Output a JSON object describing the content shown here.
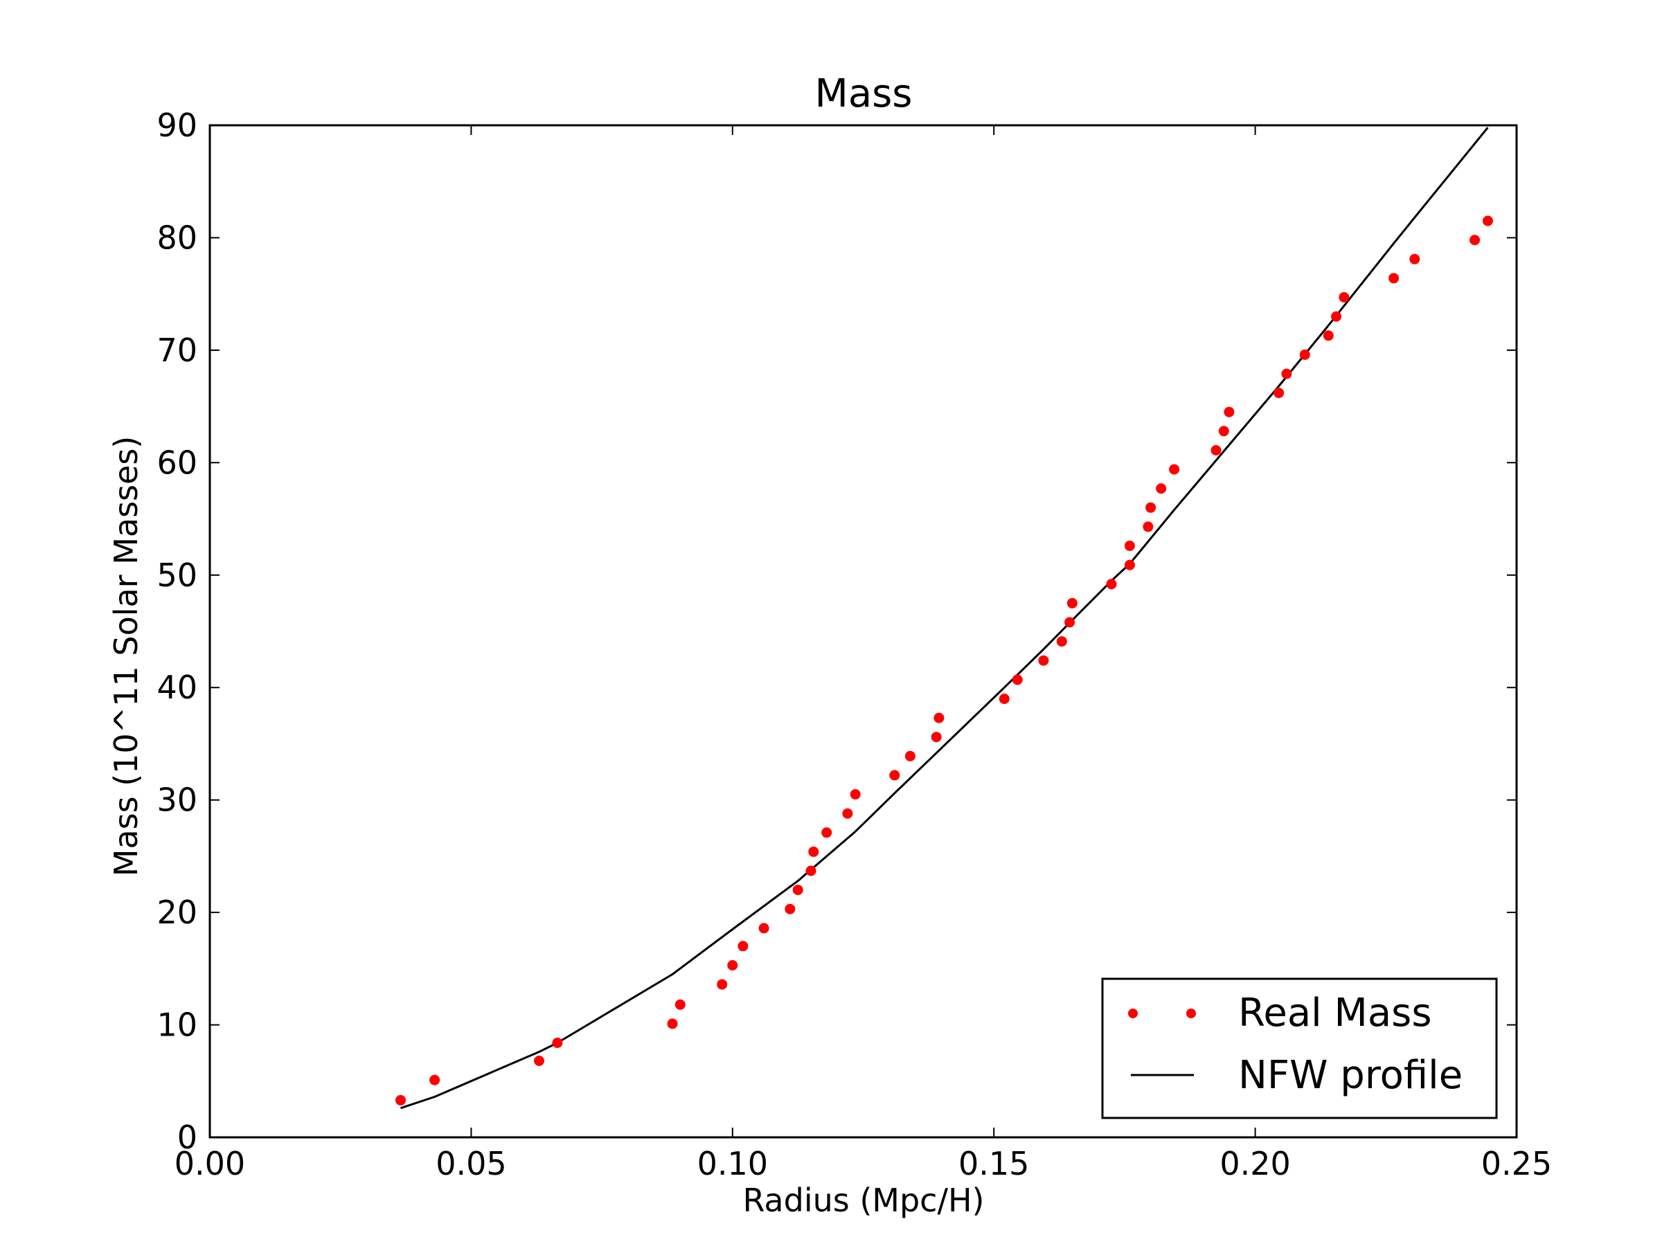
{
  "chart_data": {
    "type": "scatter",
    "title": "Mass",
    "xlabel": "Radius (Mpc/H)",
    "ylabel": "Mass (10^11 Solar Masses)",
    "xlim": [
      0.0,
      0.25
    ],
    "ylim": [
      0,
      90
    ],
    "x_ticks": [
      "0.00",
      "0.05",
      "0.10",
      "0.15",
      "0.20",
      "0.25"
    ],
    "y_ticks": [
      "0",
      "10",
      "20",
      "30",
      "40",
      "50",
      "60",
      "70",
      "80",
      "90"
    ],
    "grid": false,
    "legend_position": "bottom-right",
    "series": [
      {
        "name": "Real Mass",
        "style": "points",
        "color": "#ff0000",
        "points": [
          [
            0.0365,
            3.3
          ],
          [
            0.043,
            5.1
          ],
          [
            0.063,
            6.8
          ],
          [
            0.0665,
            8.4
          ],
          [
            0.0885,
            10.1
          ],
          [
            0.09,
            11.8
          ],
          [
            0.098,
            13.6
          ],
          [
            0.1,
            15.3
          ],
          [
            0.102,
            17.0
          ],
          [
            0.106,
            18.6
          ],
          [
            0.111,
            20.3
          ],
          [
            0.1125,
            22.0
          ],
          [
            0.115,
            23.7
          ],
          [
            0.1155,
            25.4
          ],
          [
            0.118,
            27.1
          ],
          [
            0.122,
            28.8
          ],
          [
            0.1235,
            30.5
          ],
          [
            0.131,
            32.2
          ],
          [
            0.134,
            33.9
          ],
          [
            0.139,
            35.6
          ],
          [
            0.1395,
            37.3
          ],
          [
            0.152,
            39.0
          ],
          [
            0.1545,
            40.7
          ],
          [
            0.1595,
            42.4
          ],
          [
            0.163,
            44.1
          ],
          [
            0.1645,
            45.8
          ],
          [
            0.165,
            47.5
          ],
          [
            0.1725,
            49.2
          ],
          [
            0.176,
            50.9
          ],
          [
            0.176,
            52.6
          ],
          [
            0.1795,
            54.3
          ],
          [
            0.18,
            56.0
          ],
          [
            0.182,
            57.7
          ],
          [
            0.1845,
            59.4
          ],
          [
            0.1925,
            61.1
          ],
          [
            0.194,
            62.8
          ],
          [
            0.195,
            64.5
          ],
          [
            0.2045,
            66.2
          ],
          [
            0.206,
            67.9
          ],
          [
            0.2095,
            69.6
          ],
          [
            0.214,
            71.3
          ],
          [
            0.2155,
            73.0
          ],
          [
            0.217,
            74.7
          ],
          [
            0.2265,
            76.4
          ],
          [
            0.2305,
            78.1
          ],
          [
            0.242,
            79.8
          ],
          [
            0.2445,
            81.5
          ]
        ]
      },
      {
        "name": "NFW profile",
        "style": "line",
        "color": "#000000",
        "points": [
          [
            0.0365,
            2.6
          ],
          [
            0.043,
            3.6
          ],
          [
            0.063,
            7.6
          ],
          [
            0.0665,
            8.4
          ],
          [
            0.0885,
            14.5
          ],
          [
            0.1,
            18.5
          ],
          [
            0.1125,
            22.8
          ],
          [
            0.1235,
            27.2
          ],
          [
            0.131,
            30.6
          ],
          [
            0.1395,
            34.4
          ],
          [
            0.152,
            40.0
          ],
          [
            0.1595,
            43.4
          ],
          [
            0.165,
            46.0
          ],
          [
            0.1725,
            49.5
          ],
          [
            0.176,
            51.0
          ],
          [
            0.1845,
            55.8
          ],
          [
            0.1925,
            60.2
          ],
          [
            0.2045,
            66.8
          ],
          [
            0.214,
            72.2
          ],
          [
            0.2265,
            79.5
          ],
          [
            0.2305,
            81.8
          ],
          [
            0.2445,
            89.8
          ]
        ]
      }
    ]
  }
}
